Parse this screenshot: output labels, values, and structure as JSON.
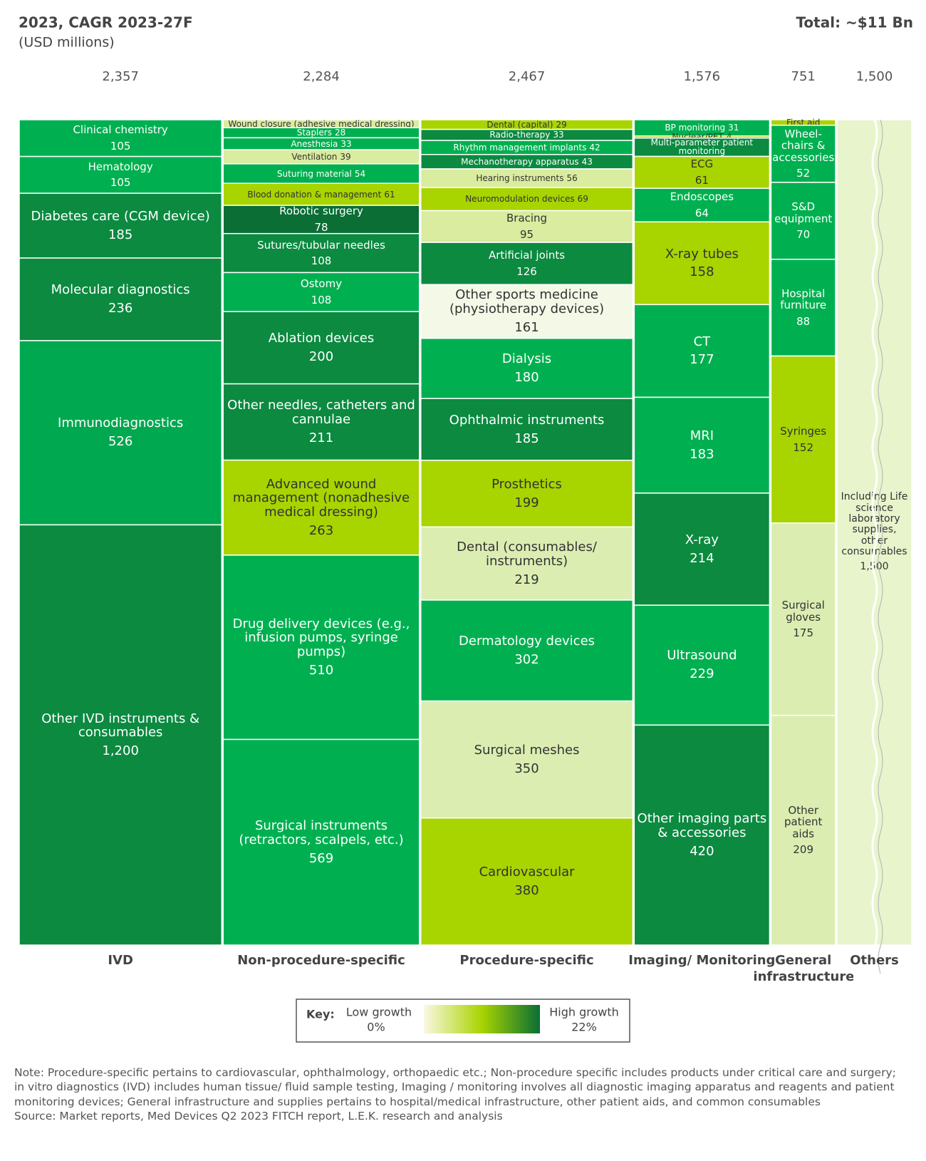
{
  "chart_data": {
    "type": "mekko",
    "title": "2023, CAGR 2023-27F",
    "subtitle": "(USD millions)",
    "total_note": "Total: ~$11 Bn",
    "categories": [
      "IVD",
      "Non-procedure-specific",
      "Procedure-specific",
      "Imaging/ Monitoring",
      "General infrastructure",
      "Others"
    ],
    "totals": [
      2357,
      2284,
      2467,
      1576,
      751,
      1500
    ],
    "total_labels": [
      "2,357",
      "2,284",
      "2,467",
      "1,576",
      "751",
      "1,500"
    ],
    "columns": [
      {
        "names": [
          "Clinical chemistry",
          "Hematology",
          "Diabetes care (CGM device)",
          "Molecular diagnostics",
          "Immunodiagnostics",
          "Other IVD instruments & consumables"
        ],
        "values": [
          105,
          105,
          185,
          236,
          526,
          1200
        ],
        "value_labels": [
          "105",
          "105",
          "185",
          "236",
          "526",
          "1,200"
        ],
        "colors": [
          "#00b050",
          "#00b050",
          "#0b8a40",
          "#0b8a40",
          "#00a84f",
          "#0b8a40"
        ]
      },
      {
        "names": [
          "Wound closure (adhesive medical dressing)",
          "Staplers",
          "Anesthesia",
          "Ventilation",
          "Suturing material",
          "Blood donation & management",
          "Robotic surgery",
          "Sutures/tubular needles",
          "Ostomy",
          "Ablation devices",
          "Other needles, catheters and cannulae",
          "Advanced wound management (nonadhesive medical dressing)",
          "Drug delivery devices (e.g., infusion pumps, syringe pumps)",
          "Surgical instruments (retractors, scalpels, etc.)"
        ],
        "values": [
          22,
          28,
          33,
          39,
          54,
          61,
          78,
          108,
          108,
          200,
          211,
          263,
          510,
          569
        ],
        "colors": [
          "#d9ec9f",
          "#00b050",
          "#00b050",
          "#d9ec9f",
          "#00b050",
          "#a8d400",
          "#0a6e35",
          "#0b8a40",
          "#00b050",
          "#0b8a40",
          "#0b8a40",
          "#a8d400",
          "#00b050",
          "#00b050"
        ]
      },
      {
        "names": [
          "Dental (capital)",
          "Radio-therapy",
          "Rhythm management implants",
          "Mechanotherapy apparatus",
          "Hearing instruments",
          "Neuromodulation devices",
          "Bracing",
          "Artificial joints",
          "Other sports medicine (physiotherapy devices)",
          "Dialysis",
          "Ophthalmic instruments",
          "Prosthetics",
          "Dental (consumables/ instruments)",
          "Dermatology devices",
          "Surgical meshes",
          "Cardiovascular"
        ],
        "values": [
          29,
          33,
          42,
          43,
          56,
          69,
          95,
          126,
          161,
          180,
          185,
          199,
          219,
          302,
          350,
          380
        ],
        "colors": [
          "#a8d400",
          "#0b8a40",
          "#00b050",
          "#0b8a40",
          "#d9ec9f",
          "#a8d400",
          "#d9ec9f",
          "#0b8a40",
          "#f3f9e6",
          "#00b050",
          "#0b8a40",
          "#a8d400",
          "#dcedb2",
          "#00b050",
          "#dcedb2",
          "#a8d400"
        ]
      },
      {
        "names": [
          "BP monitoring",
          "Nuclear/PET",
          "Multi-parameter patient monitoring",
          "ECG",
          "Endoscopes",
          "X-ray tubes",
          "CT",
          "MRI",
          "X-ray",
          "Ultrasound",
          "Other imaging parts & accessories"
        ],
        "values": [
          31,
          4,
          35,
          61,
          64,
          158,
          177,
          183,
          214,
          229,
          420
        ],
        "colors": [
          "#00b050",
          "#a8d400",
          "#0b8a40",
          "#a8d400",
          "#00b050",
          "#a8d400",
          "#00b050",
          "#00b050",
          "#0b8a40",
          "#00b050",
          "#0b8a40"
        ]
      },
      {
        "names": [
          "First aid boxes & kits",
          "Wheel-chairs & accessories",
          "S&D equipment",
          "Hospital furniture",
          "Syringes",
          "Surgical gloves",
          "Other patient aids"
        ],
        "values": [
          5,
          52,
          70,
          88,
          152,
          175,
          209
        ],
        "colors": [
          "#a8d400",
          "#00b050",
          "#00b050",
          "#00b050",
          "#a8d400",
          "#dcedb2",
          "#dcedb2"
        ]
      },
      {
        "names": [
          "Including Life science laboratory supplies, other consumables"
        ],
        "values": [
          1500
        ],
        "value_labels": [
          "1,500"
        ],
        "colors": [
          "#e8f4cc"
        ]
      }
    ],
    "key": {
      "title": "Key:",
      "low": "Low growth",
      "low_value": "0%",
      "high": "High growth",
      "high_value": "22%",
      "colors": [
        "#fbf8e2",
        "#a8d400",
        "#0a6e35"
      ]
    },
    "note": "Note: Procedure-specific pertains to cardiovascular, ophthalmology, orthopaedic etc.; Non-procedure specific includes products under critical care and surgery; in vitro diagnostics (IVD) includes human tissue/ fluid sample testing, Imaging / monitoring involves all diagnostic imaging apparatus and reagents and patient monitoring devices; General infrastructure and supplies pertains to hospital/medical infrastructure, other patient aids, and common consumables",
    "source": "Source: Market reports, Med Devices Q2 2023 FITCH report, L.E.K. research and analysis"
  }
}
